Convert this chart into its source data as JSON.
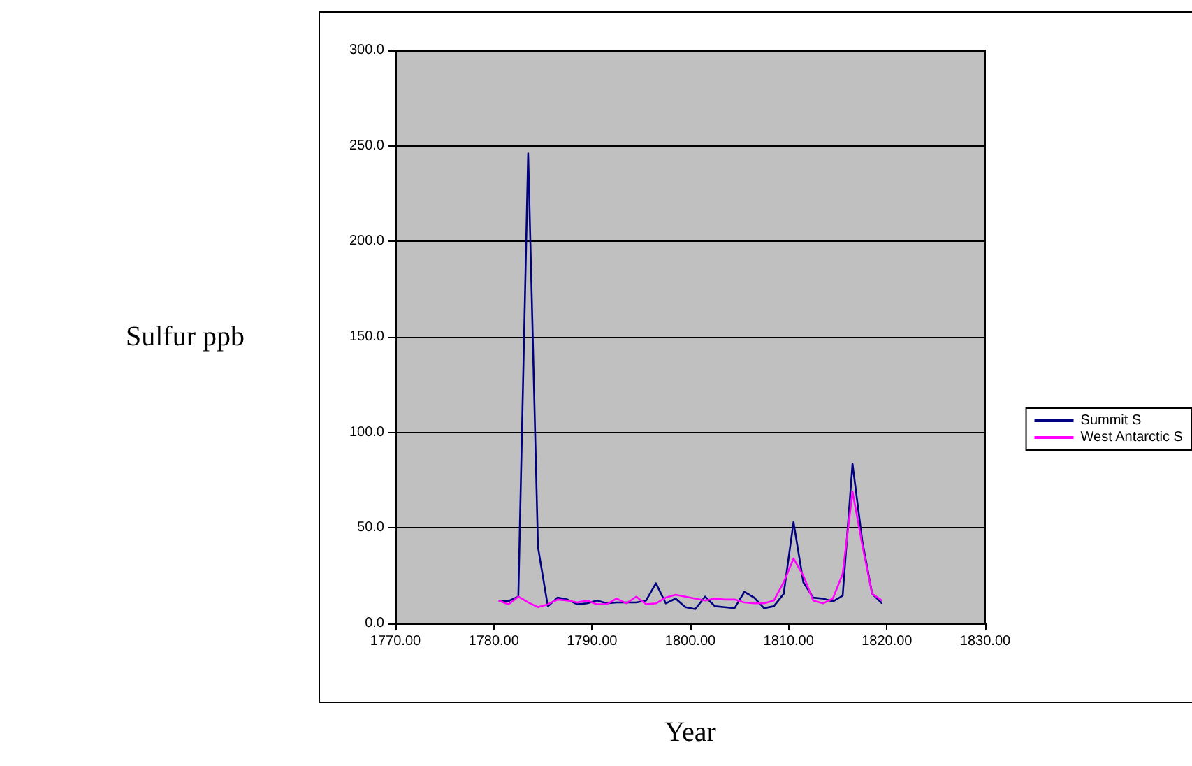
{
  "chart_data": {
    "type": "line",
    "xlabel": "Year",
    "ylabel": "Sulfur ppb",
    "x": [
      1780.5,
      1781.5,
      1782.5,
      1783.5,
      1784.5,
      1785.5,
      1786.5,
      1787.5,
      1788.5,
      1789.5,
      1790.5,
      1791.5,
      1792.5,
      1793.5,
      1794.5,
      1795.5,
      1796.5,
      1797.5,
      1798.5,
      1799.5,
      1800.5,
      1801.5,
      1802.5,
      1803.5,
      1804.5,
      1805.5,
      1806.5,
      1807.5,
      1808.5,
      1809.5,
      1810.5,
      1811.5,
      1812.5,
      1813.5,
      1814.5,
      1815.5,
      1816.5,
      1817.5,
      1818.5,
      1819.5
    ],
    "series": [
      {
        "name": "Summit S",
        "color": "#000080",
        "values": [
          11.7,
          11.7,
          14,
          246,
          40,
          9,
          13.5,
          12.5,
          10,
          10.5,
          12,
          10.5,
          11,
          11,
          11,
          12,
          21,
          10.5,
          13,
          8.5,
          7.5,
          14,
          9,
          8.5,
          8,
          16.5,
          13.5,
          8,
          9,
          15.5,
          53,
          21.5,
          13.5,
          13,
          11.5,
          14.5,
          83.5,
          43,
          15.5,
          10.5
        ]
      },
      {
        "name": "West Antarctic S",
        "color": "#ff00ff",
        "values": [
          12,
          10,
          14,
          11,
          8.5,
          10,
          12.5,
          12,
          11,
          12,
          10,
          10,
          13,
          10.5,
          14,
          10,
          10.5,
          13.5,
          15,
          14,
          13,
          12,
          13,
          12.5,
          12.5,
          11,
          10.5,
          10.5,
          12,
          21.5,
          34,
          25,
          12,
          10.5,
          13,
          26,
          69,
          41,
          15.5,
          12
        ]
      }
    ],
    "xlim": [
      1770,
      1830
    ],
    "xticks": [
      {
        "value": 1770,
        "label": "1770.00"
      },
      {
        "value": 1780,
        "label": "1780.00"
      },
      {
        "value": 1790,
        "label": "1790.00"
      },
      {
        "value": 1800,
        "label": "1800.00"
      },
      {
        "value": 1810,
        "label": "1810.00"
      },
      {
        "value": 1820,
        "label": "1820.00"
      },
      {
        "value": 1830,
        "label": "1830.00"
      }
    ],
    "ylim": [
      0,
      300
    ],
    "yticks": [
      {
        "value": 0,
        "label": "0.0"
      },
      {
        "value": 50,
        "label": "50.0"
      },
      {
        "value": 100,
        "label": "100.0"
      },
      {
        "value": 150,
        "label": "150.0"
      },
      {
        "value": 200,
        "label": "200.0"
      },
      {
        "value": 250,
        "label": "250.0"
      },
      {
        "value": 300,
        "label": "300.0"
      }
    ],
    "grid": "y",
    "legend": "right",
    "marker": "none",
    "line_style": "solid"
  }
}
